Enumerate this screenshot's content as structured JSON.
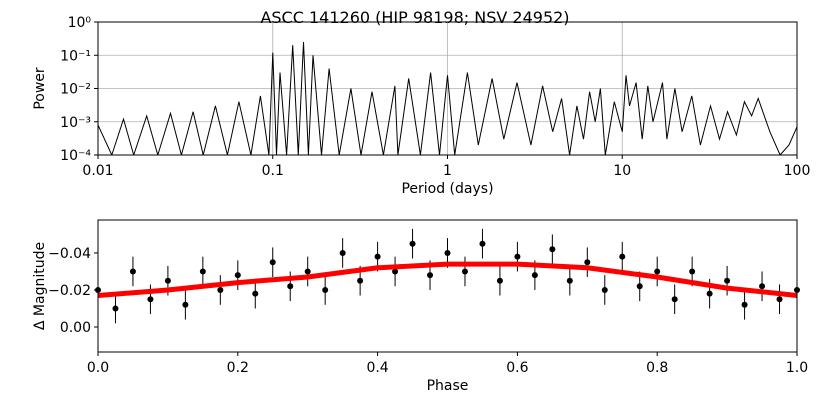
{
  "chart_data": [
    {
      "type": "line",
      "title": "ASCC 141260  (HIP 98198; NSV 24952)",
      "xlabel": "Period (days)",
      "ylabel": "Power",
      "xscale": "log",
      "yscale": "log",
      "grid": true,
      "xlim": [
        0.01,
        100
      ],
      "ylim": [
        0.0001,
        1
      ],
      "xticks": [
        0.01,
        0.1,
        1,
        10,
        100
      ],
      "yticks": [
        {
          "value": 0.0001,
          "label": "10⁻⁴"
        },
        {
          "value": 0.001,
          "label": "10⁻³"
        },
        {
          "value": 0.01,
          "label": "10⁻²"
        },
        {
          "value": 0.1,
          "label": "10⁻¹"
        },
        {
          "value": 1,
          "label": "10⁰"
        }
      ],
      "series": [
        {
          "color": "#000000",
          "x": [
            0.01,
            0.012,
            0.014,
            0.016,
            0.019,
            0.022,
            0.026,
            0.03,
            0.035,
            0.04,
            0.047,
            0.055,
            0.064,
            0.075,
            0.085,
            0.095,
            0.1,
            0.105,
            0.11,
            0.12,
            0.13,
            0.14,
            0.15,
            0.16,
            0.17,
            0.19,
            0.21,
            0.24,
            0.28,
            0.32,
            0.37,
            0.43,
            0.5,
            0.52,
            0.6,
            0.7,
            0.8,
            0.9,
            1.0,
            1.1,
            1.3,
            1.5,
            1.8,
            2.1,
            2.5,
            3,
            3.5,
            4,
            4.5,
            5,
            5.5,
            6,
            6.5,
            7,
            7.5,
            8,
            9,
            10,
            10.5,
            11,
            12,
            13,
            14,
            15,
            17,
            18,
            20,
            22,
            25,
            28,
            32,
            36,
            40,
            45,
            50,
            55,
            60,
            65,
            70,
            80,
            90,
            100
          ],
          "values": [
            0.0008,
            0.0001,
            0.0012,
            0.0001,
            0.0015,
            0.0001,
            0.0018,
            0.0001,
            0.002,
            0.0001,
            0.003,
            0.0001,
            0.004,
            0.0001,
            0.006,
            0.0001,
            0.12,
            0.0001,
            0.03,
            0.0001,
            0.2,
            0.0001,
            0.25,
            0.0001,
            0.1,
            0.0001,
            0.04,
            0.0001,
            0.01,
            0.0001,
            0.008,
            0.0001,
            0.012,
            0.0001,
            0.02,
            0.0001,
            0.03,
            0.0001,
            0.025,
            0.0001,
            0.03,
            0.0002,
            0.02,
            0.0003,
            0.015,
            0.0002,
            0.012,
            0.0005,
            0.005,
            0.0001,
            0.003,
            0.0003,
            0.008,
            0.001,
            0.01,
            0.0001,
            0.004,
            0.0005,
            0.025,
            0.003,
            0.015,
            0.0003,
            0.012,
            0.001,
            0.015,
            0.0003,
            0.01,
            0.0005,
            0.006,
            0.0002,
            0.003,
            0.0003,
            0.002,
            0.0004,
            0.004,
            0.0015,
            0.005,
            0.0015,
            0.0005,
            0.0001,
            0.0002,
            0.0007
          ]
        }
      ]
    },
    {
      "type": "scatter",
      "xlabel": "Phase",
      "ylabel": "Δ Magnitude",
      "grid": false,
      "xlim": [
        0,
        1
      ],
      "ylim": [
        0.0135,
        -0.0578
      ],
      "xticks": [
        {
          "value": 0,
          "label": "0.0"
        },
        0.2,
        0.4,
        0.6,
        0.8,
        {
          "value": 1,
          "label": "1.0"
        }
      ],
      "yticks": [
        {
          "value": -0.04,
          "label": "−0.04"
        },
        {
          "value": -0.02,
          "label": "−0.02"
        },
        {
          "value": 0,
          "label": "0.00"
        }
      ],
      "series": [
        {
          "type": "scatter",
          "color": "#000000",
          "x": [
            0,
            0.025,
            0.05,
            0.075,
            0.1,
            0.125,
            0.15,
            0.175,
            0.2,
            0.225,
            0.25,
            0.275,
            0.3,
            0.325,
            0.35,
            0.375,
            0.4,
            0.425,
            0.45,
            0.475,
            0.5,
            0.525,
            0.55,
            0.575,
            0.6,
            0.625,
            0.65,
            0.675,
            0.7,
            0.725,
            0.75,
            0.775,
            0.8,
            0.825,
            0.85,
            0.875,
            0.9,
            0.925,
            0.95,
            0.975,
            1.0
          ],
          "values": [
            -0.02,
            -0.01,
            -0.03,
            -0.015,
            -0.025,
            -0.012,
            -0.03,
            -0.02,
            -0.028,
            -0.018,
            -0.035,
            -0.022,
            -0.03,
            -0.02,
            -0.04,
            -0.025,
            -0.038,
            -0.03,
            -0.045,
            -0.028,
            -0.04,
            -0.03,
            -0.045,
            -0.025,
            -0.038,
            -0.028,
            -0.042,
            -0.025,
            -0.035,
            -0.02,
            -0.038,
            -0.022,
            -0.03,
            -0.015,
            -0.03,
            -0.018,
            -0.025,
            -0.012,
            -0.022,
            -0.015,
            -0.02
          ],
          "errors": [
            0.008,
            0.008,
            0.008,
            0.008,
            0.008,
            0.008,
            0.008,
            0.008,
            0.008,
            0.008,
            0.008,
            0.008,
            0.008,
            0.008,
            0.008,
            0.008,
            0.008,
            0.008,
            0.008,
            0.008,
            0.008,
            0.008,
            0.008,
            0.008,
            0.008,
            0.008,
            0.008,
            0.008,
            0.008,
            0.008,
            0.008,
            0.008,
            0.008,
            0.008,
            0.008,
            0.008,
            0.008,
            0.008,
            0.008,
            0.008,
            0.008
          ]
        },
        {
          "type": "line",
          "color": "#ff0000",
          "x": [
            0,
            0.1,
            0.2,
            0.3,
            0.4,
            0.5,
            0.6,
            0.7,
            0.8,
            0.9,
            1.0
          ],
          "values": [
            -0.017,
            -0.02,
            -0.024,
            -0.027,
            -0.032,
            -0.034,
            -0.034,
            -0.032,
            -0.027,
            -0.021,
            -0.017
          ]
        }
      ]
    }
  ]
}
